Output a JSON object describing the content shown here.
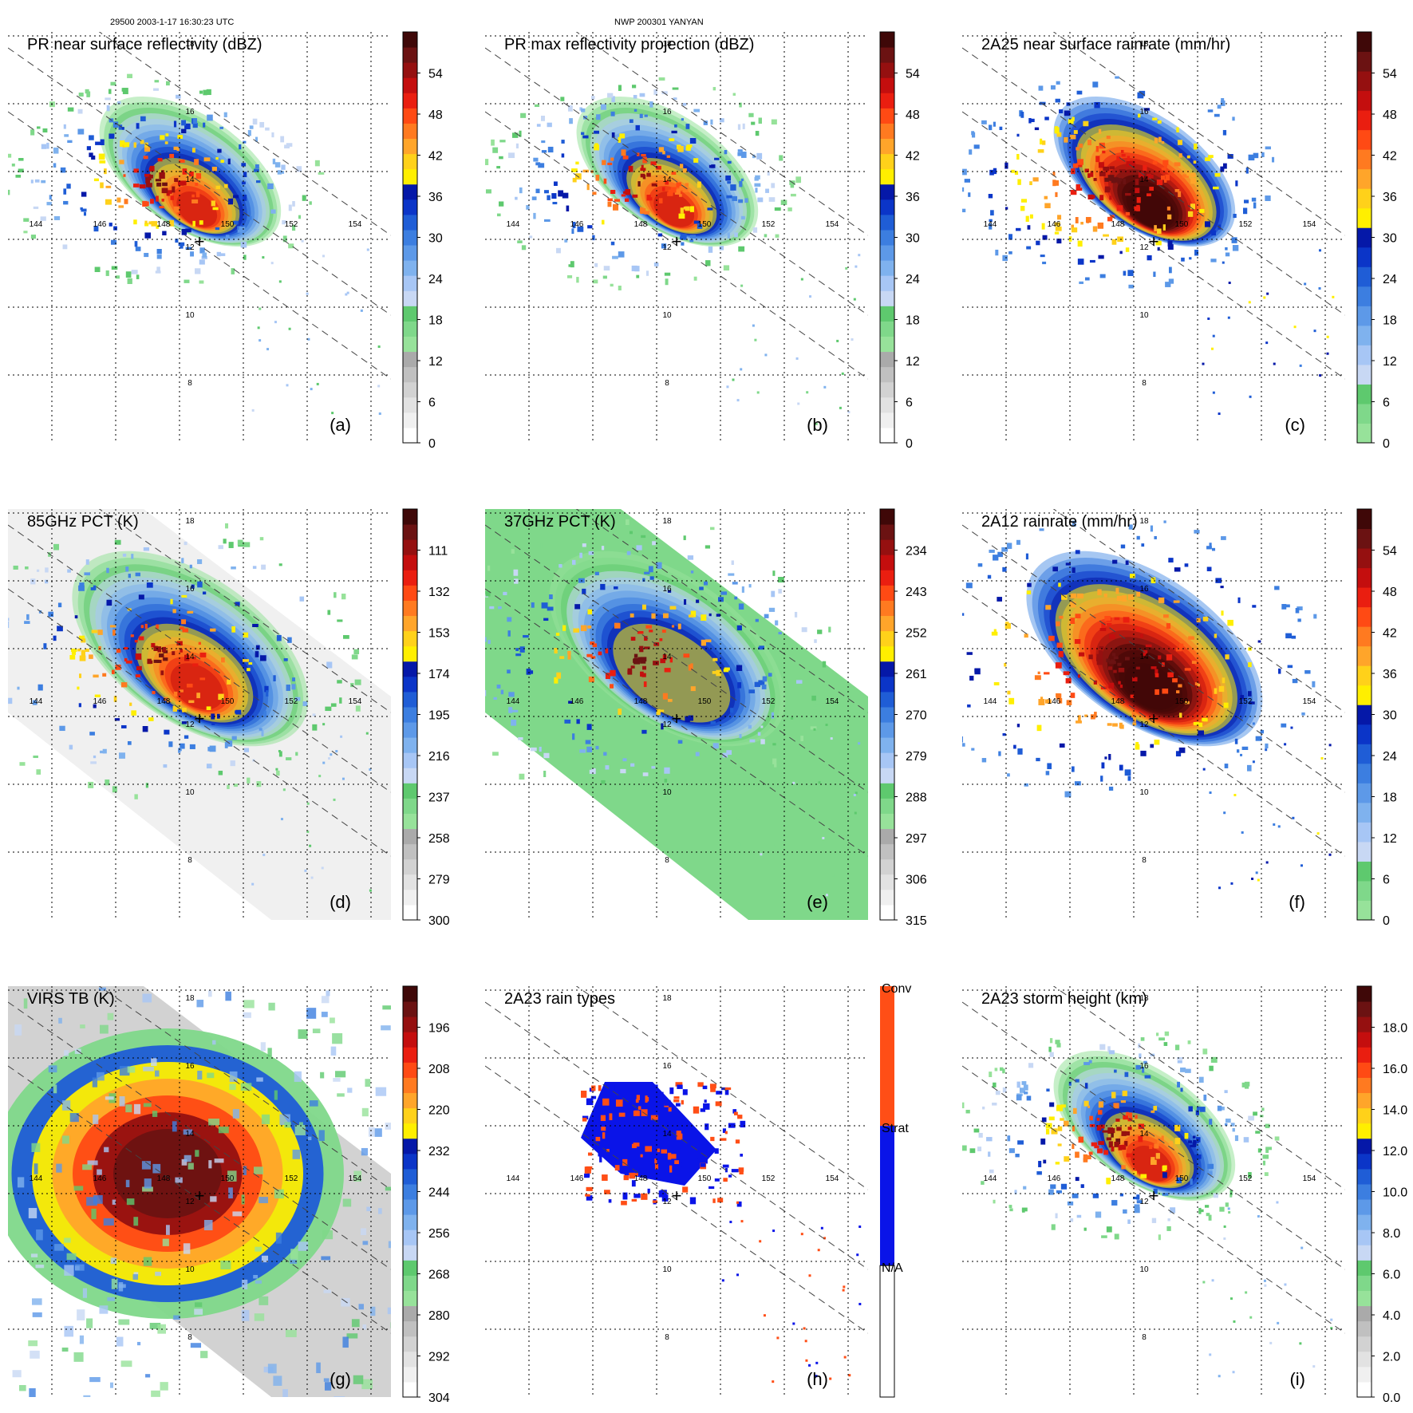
{
  "header": {
    "left": "29500 2003-1-17 16:30:23 UTC",
    "center": "NWP 200301 YANYAN"
  },
  "grid": {
    "lon_labels": [
      "144",
      "146",
      "148",
      "150",
      "152",
      "154"
    ],
    "lat_labels": [
      "18",
      "16",
      "14",
      "12",
      "10",
      "8"
    ],
    "center_marker": "+"
  },
  "colors": {
    "gray": [
      "#ffffff",
      "#f0f0f0",
      "#e2e2e2",
      "#d2d2d2",
      "#c0c0c0",
      "#aaaaaa"
    ],
    "green": [
      "#97e29a",
      "#7fd88a",
      "#5ec96e"
    ],
    "blues": [
      "#c8d8f4",
      "#a7c6f5",
      "#7fb2ee",
      "#5d99e8",
      "#3c7ee0",
      "#1f5dd6",
      "#0b35c8",
      "#0518a8"
    ],
    "yellow": "#ffef00",
    "warm": [
      "#ffd11a",
      "#ffa52a",
      "#ff7a20",
      "#ff4a14",
      "#ea1e10",
      "#c40e0e",
      "#951010",
      "#6b1212",
      "#3f0808"
    ],
    "conv": "#ff4e16",
    "strat": "#0a14e8",
    "na": "#ffffff"
  },
  "chart_data": [
    {
      "type": "heatmap",
      "panel": "a",
      "title": "PR near surface reflectivity (dBZ)",
      "colorbar_ticks": [
        "0",
        "6",
        "12",
        "18",
        "24",
        "30",
        "36",
        "42",
        "48",
        "54"
      ],
      "scale": "dbz",
      "region": "swath_narrow",
      "annotation": "(a)"
    },
    {
      "type": "heatmap",
      "panel": "b",
      "title": "PR max reflectivity projection (dBZ)",
      "colorbar_ticks": [
        "0",
        "6",
        "12",
        "18",
        "24",
        "30",
        "36",
        "42",
        "48",
        "54"
      ],
      "scale": "dbz",
      "region": "swath_narrow",
      "annotation": "(b)"
    },
    {
      "type": "heatmap",
      "panel": "c",
      "title": "2A25 near surface rainrate (mm/hr)",
      "colorbar_ticks": [
        "0",
        "6",
        "12",
        "18",
        "24",
        "30",
        "36",
        "42",
        "48",
        "54"
      ],
      "scale": "rain",
      "region": "swath_narrow",
      "annotation": "(c)"
    },
    {
      "type": "heatmap",
      "panel": "d",
      "title": "85GHz PCT (K)",
      "colorbar_ticks": [
        "300",
        "279",
        "258",
        "237",
        "216",
        "195",
        "174",
        "153",
        "132",
        "111"
      ],
      "scale": "dbz",
      "region": "swath_wide",
      "annotation": "(d)"
    },
    {
      "type": "heatmap",
      "panel": "e",
      "title": "37GHz PCT (K)",
      "colorbar_ticks": [
        "315",
        "306",
        "297",
        "288",
        "279",
        "270",
        "261",
        "252",
        "243",
        "234"
      ],
      "scale": "dbz",
      "region": "swath_wide",
      "annotation": "(e)"
    },
    {
      "type": "heatmap",
      "panel": "f",
      "title": "2A12 rainrate (mm/hr)",
      "colorbar_ticks": [
        "0",
        "6",
        "12",
        "18",
        "24",
        "30",
        "36",
        "42",
        "48",
        "54"
      ],
      "scale": "rain",
      "region": "swath_wide",
      "annotation": "(f)"
    },
    {
      "type": "heatmap",
      "panel": "g",
      "title": "VIRS TB (K)",
      "colorbar_ticks": [
        "304",
        "292",
        "280",
        "268",
        "256",
        "244",
        "232",
        "220",
        "208",
        "196"
      ],
      "scale": "dbz",
      "region": "swath_wide",
      "annotation": "(g)"
    },
    {
      "type": "heatmap",
      "panel": "h",
      "title": "2A23 rain types",
      "colorbar_categories": [
        "N/A",
        "Strat",
        "Conv"
      ],
      "scale": "cat",
      "region": "swath_narrow",
      "annotation": "(h)"
    },
    {
      "type": "heatmap",
      "panel": "i",
      "title": "2A23 storm height (km)",
      "colorbar_ticks": [
        "0.0",
        "2.0",
        "4.0",
        "6.0",
        "8.0",
        "10.0",
        "12.0",
        "14.0",
        "16.0",
        "18.0"
      ],
      "scale": "height",
      "region": "swath_narrow",
      "annotation": "(i)"
    }
  ]
}
